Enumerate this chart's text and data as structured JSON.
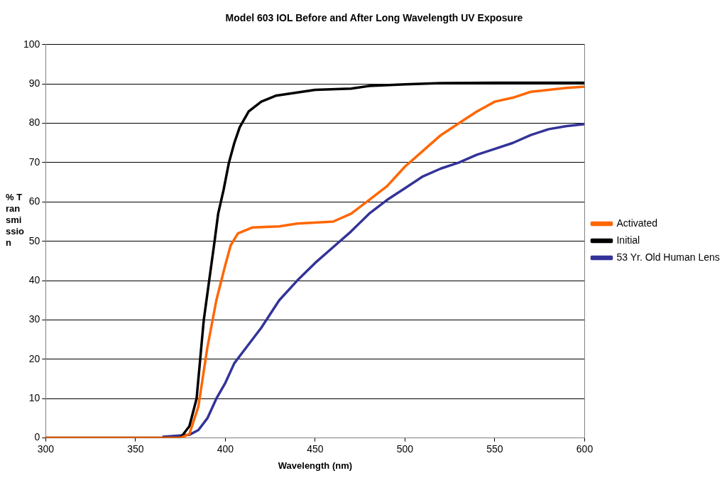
{
  "chart_data": {
    "type": "line",
    "title": "Model 603 IOL Before and After Long Wavelength UV Exposure",
    "xlabel": "Wavelength (nm)",
    "ylabel": "% Transmission",
    "xlim": [
      300,
      600
    ],
    "xticks": [
      300,
      350,
      400,
      450,
      500,
      550,
      600
    ],
    "ylim": [
      0,
      100
    ],
    "yticks": [
      0,
      10,
      20,
      30,
      40,
      50,
      60,
      70,
      80,
      90,
      100
    ],
    "grid": "y",
    "legend": "right",
    "marker": "none",
    "line_style": "solid",
    "series": [
      {
        "name": "Activated",
        "color": "#ff6600",
        "x": [
          300,
          350,
          375,
          380,
          385,
          390,
          395,
          400,
          403,
          407,
          415,
          430,
          440,
          460,
          470,
          480,
          490,
          500,
          510,
          520,
          530,
          540,
          550,
          560,
          570,
          580,
          590,
          600
        ],
        "values": [
          0,
          0,
          0,
          1,
          8,
          23,
          35,
          44,
          49,
          52,
          53.5,
          53.8,
          54.5,
          55,
          57,
          60.5,
          64,
          69,
          73,
          77,
          80,
          83,
          85.5,
          86.5,
          88,
          88.5,
          89,
          89.3
        ]
      },
      {
        "name": "Initial",
        "color": "#000000",
        "x": [
          300,
          350,
          375,
          380,
          384,
          388,
          391,
          394,
          396,
          399,
          402,
          405,
          408,
          413,
          420,
          428,
          450,
          470,
          480,
          500,
          520,
          550,
          600
        ],
        "values": [
          0,
          0,
          0,
          3,
          10,
          30,
          40,
          50,
          57,
          63,
          70,
          75,
          79,
          83,
          85.5,
          87,
          88.5,
          88.8,
          89.5,
          89.9,
          90.2,
          90.3,
          90.3
        ]
      },
      {
        "name": "53 Yr. Old Human Lens",
        "color": "#333399",
        "x": [
          365,
          380,
          385,
          390,
          395,
          400,
          405,
          410,
          420,
          430,
          440,
          450,
          460,
          470,
          480,
          490,
          500,
          510,
          520,
          530,
          540,
          550,
          560,
          570,
          580,
          590,
          600
        ],
        "values": [
          0.3,
          0.8,
          2,
          5,
          10,
          14,
          19,
          22,
          28,
          35,
          40,
          44.5,
          48.5,
          52.5,
          57,
          60.5,
          63.5,
          66.5,
          68.5,
          70,
          72,
          73.5,
          75,
          77,
          78.5,
          79.3,
          79.8
        ]
      }
    ]
  }
}
